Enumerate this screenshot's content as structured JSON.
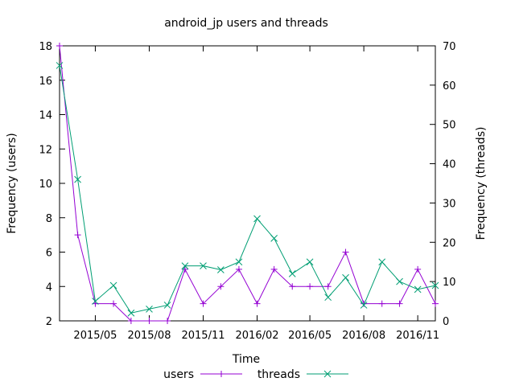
{
  "chart_data": {
    "type": "line",
    "title": "android_jp users and threads",
    "xlabel": "Time",
    "ylabel_left": "Frequency (users)",
    "ylabel_right": "Frequency (threads)",
    "x_ticks": [
      "2015/05",
      "2015/08",
      "2015/11",
      "2016/02",
      "2016/05",
      "2016/08",
      "2016/11"
    ],
    "x_tick_dates": [
      "2015-05-01",
      "2015-08-01",
      "2015-11-01",
      "2016-02-01",
      "2016-05-01",
      "2016-08-01",
      "2016-11-01"
    ],
    "x_range": [
      "2015-03-01",
      "2016-12-01"
    ],
    "ylim_left": [
      2,
      18
    ],
    "yticks_left": [
      2,
      4,
      6,
      8,
      10,
      12,
      14,
      16,
      18
    ],
    "ylim_right": [
      0,
      70
    ],
    "yticks_right": [
      0,
      10,
      20,
      30,
      40,
      50,
      60,
      70
    ],
    "legend_position": "bottom",
    "x": [
      "2015-03-01",
      "2015-04-01",
      "2015-05-01",
      "2015-06-01",
      "2015-07-01",
      "2015-08-01",
      "2015-09-01",
      "2015-10-01",
      "2015-11-01",
      "2015-12-01",
      "2016-01-01",
      "2016-02-01",
      "2016-03-01",
      "2016-04-01",
      "2016-05-01",
      "2016-06-01",
      "2016-07-01",
      "2016-08-01",
      "2016-09-01",
      "2016-10-01",
      "2016-11-01",
      "2016-12-01"
    ],
    "series": [
      {
        "name": "users",
        "axis": "left",
        "color": "#9400d3",
        "marker": "plus",
        "values": [
          18,
          7,
          3,
          3,
          2,
          2,
          2,
          5,
          3,
          4,
          5,
          3,
          5,
          4,
          4,
          4,
          6,
          3,
          3,
          3,
          5,
          3
        ]
      },
      {
        "name": "threads",
        "axis": "right",
        "color": "#009e73",
        "marker": "cross",
        "values": [
          65,
          36,
          5,
          9,
          2,
          3,
          4,
          14,
          14,
          13,
          15,
          26,
          21,
          12,
          15,
          6,
          11,
          4,
          15,
          10,
          8,
          9
        ]
      }
    ]
  }
}
